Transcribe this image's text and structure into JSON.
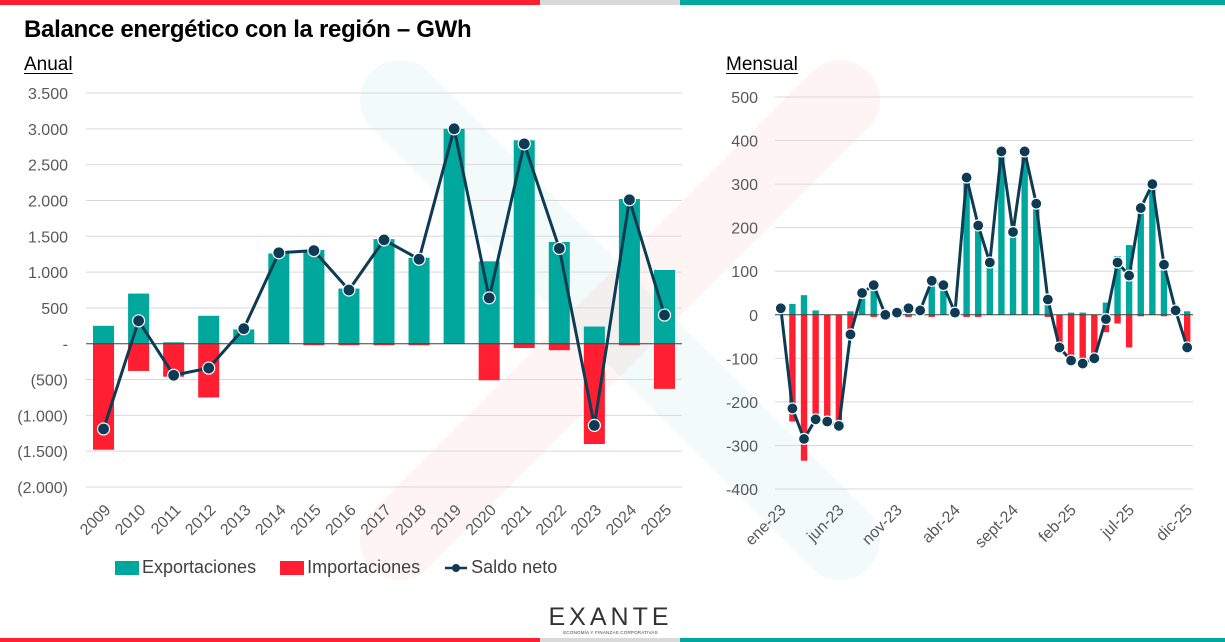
{
  "header": {
    "title": "Balance energético con la región – GWh",
    "annual_label": "Anual",
    "monthly_label": "Mensual"
  },
  "colors": {
    "exports": "#00A79D",
    "imports": "#FF1F30",
    "net": "#0D3B54",
    "brand_red": "#FF1F30",
    "brand_teal": "#00A79D",
    "brand_grey": "#D9D9D9",
    "grid": "#D9D9D9",
    "axis_text": "#595959"
  },
  "legend": {
    "exports": "Exportaciones",
    "imports": "Importaciones",
    "net": "Saldo neto"
  },
  "logo": {
    "word": "EXANTE",
    "tagline": "ECONOMÍA Y FINANZAS CORPORATIVAS"
  },
  "chart_data": [
    {
      "type": "bar",
      "title": "Anual",
      "xlabel": "",
      "ylabel": "",
      "ylim": [
        -2000,
        3500
      ],
      "yticks": [
        3500,
        3000,
        2500,
        2000,
        1500,
        1000,
        500,
        0,
        -500,
        -1000,
        -1500,
        -2000
      ],
      "ytick_labels": [
        "3.500",
        "3.000",
        "2.500",
        "2.000",
        "1.500",
        "1.000",
        "500",
        "-",
        "(500)",
        "(1.000)",
        "(1.500)",
        "(2.000)"
      ],
      "grid": true,
      "legend_position": "bottom",
      "categories": [
        "2009",
        "2010",
        "2011",
        "2012",
        "2013",
        "2014",
        "2015",
        "2016",
        "2017",
        "2018",
        "2019",
        "2020",
        "2021",
        "2022",
        "2023",
        "2024",
        "2025"
      ],
      "series": [
        {
          "name": "Exportaciones",
          "kind": "bar",
          "values": [
            250,
            700,
            20,
            390,
            200,
            1260,
            1310,
            770,
            1460,
            1200,
            3000,
            1150,
            2840,
            1420,
            240,
            2020,
            1030
          ]
        },
        {
          "name": "Importaciones",
          "kind": "bar",
          "values": [
            -1480,
            -380,
            -460,
            -750,
            0,
            0,
            -15,
            -15,
            -15,
            -15,
            0,
            -510,
            -60,
            -90,
            -1400,
            -15,
            -630
          ]
        },
        {
          "name": "Saldo neto",
          "kind": "line",
          "values": [
            -1190,
            320,
            -440,
            -340,
            210,
            1270,
            1300,
            750,
            1450,
            1180,
            3000,
            640,
            2790,
            1330,
            -1140,
            2010,
            400
          ]
        }
      ]
    },
    {
      "type": "bar",
      "title": "Mensual",
      "xlabel": "",
      "ylabel": "",
      "ylim": [
        -400,
        500
      ],
      "yticks": [
        500,
        400,
        300,
        200,
        100,
        0,
        -100,
        -200,
        -300,
        -400
      ],
      "ytick_labels": [
        "500",
        "400",
        "300",
        "200",
        "100",
        "0",
        "-100",
        "-200",
        "-300",
        "-400"
      ],
      "grid": true,
      "categories": [
        "ene-23",
        "feb-23",
        "mar-23",
        "abr-23",
        "may-23",
        "jun-23",
        "jul-23",
        "ago-23",
        "sept-23",
        "oct-23",
        "nov-23",
        "dic-23",
        "ene-24",
        "feb-24",
        "mar-24",
        "abr-24",
        "may-24",
        "jun-24",
        "jul-24",
        "ago-24",
        "sept-24",
        "oct-24",
        "nov-24",
        "dic-24",
        "ene-25",
        "feb-25",
        "mar-25",
        "abr-25",
        "may-25",
        "jun-25",
        "jul-25",
        "ago-25",
        "sept-25",
        "oct-25",
        "nov-25",
        "dic-25"
      ],
      "tick_labels_shown": [
        "ene-23",
        "jun-23",
        "nov-23",
        "abr-24",
        "sept-24",
        "feb-25",
        "jul-25",
        "dic-25"
      ],
      "series": [
        {
          "name": "Exportaciones",
          "kind": "bar",
          "values": [
            0,
            25,
            45,
            10,
            0,
            0,
            8,
            50,
            65,
            0,
            5,
            10,
            10,
            75,
            65,
            5,
            320,
            210,
            120,
            375,
            190,
            375,
            250,
            35,
            0,
            5,
            5,
            0,
            28,
            135,
            160,
            240,
            295,
            115,
            10,
            8
          ]
        },
        {
          "name": "Importaciones",
          "kind": "bar",
          "values": [
            0,
            -245,
            -335,
            -250,
            -245,
            -255,
            -50,
            0,
            -5,
            0,
            0,
            -5,
            0,
            -5,
            0,
            0,
            -5,
            -5,
            0,
            0,
            0,
            0,
            0,
            -5,
            -75,
            -100,
            -110,
            -100,
            -40,
            -20,
            -75,
            -3,
            0,
            -3,
            0,
            -75
          ]
        },
        {
          "name": "Saldo neto",
          "kind": "line",
          "values": [
            15,
            -215,
            -285,
            -240,
            -245,
            -255,
            -45,
            50,
            68,
            0,
            5,
            15,
            10,
            78,
            68,
            5,
            315,
            205,
            120,
            375,
            190,
            375,
            255,
            35,
            -75,
            -105,
            -112,
            -100,
            -10,
            120,
            90,
            245,
            300,
            115,
            10,
            -75
          ]
        }
      ]
    }
  ]
}
